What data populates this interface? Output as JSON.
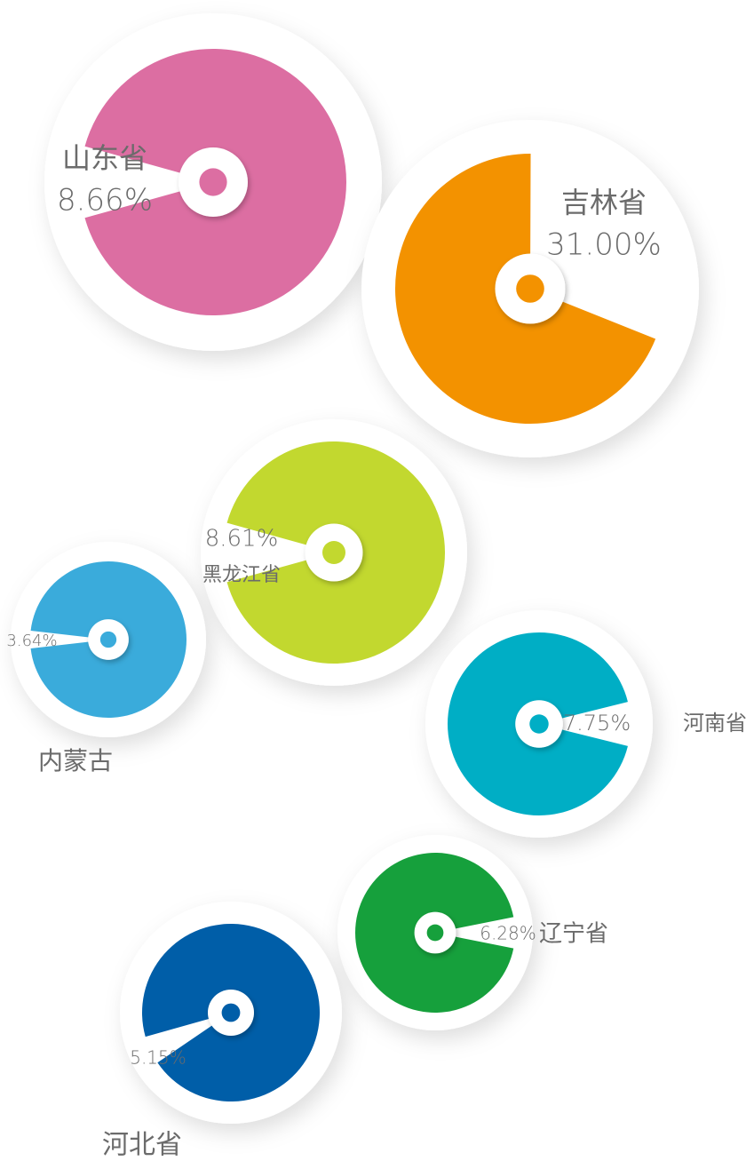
{
  "chart_data": {
    "type": "pie",
    "categories": [
      "山东省",
      "吉林省",
      "黑龙江省",
      "内蒙古",
      "河南省",
      "辽宁省",
      "河北省"
    ],
    "values": [
      8.66,
      31.0,
      8.61,
      3.64,
      7.75,
      6.28,
      5.15
    ],
    "value_labels": [
      "8.66%",
      "31.00%",
      "8.61%",
      "3.64%",
      "7.75%",
      "6.28%",
      "5.15%"
    ],
    "colors": [
      "#dc6ea2",
      "#f39200",
      "#c2d82f",
      "#3aabdb",
      "#00aec5",
      "#16a03c",
      "#005ea8"
    ]
  }
}
